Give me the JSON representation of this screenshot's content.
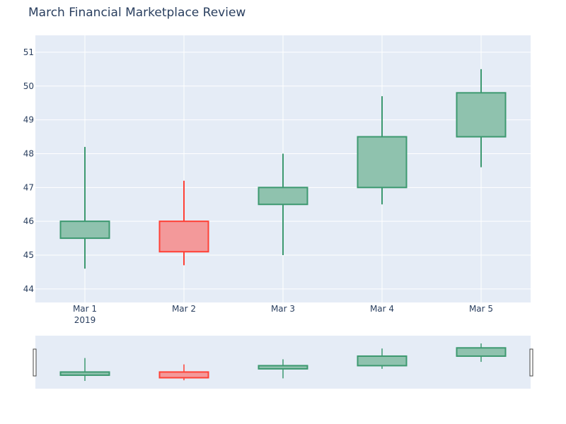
{
  "chart_data": {
    "type": "candlestick",
    "title": "March Financial Marketplace Review",
    "xlabel": "",
    "ylabel": "",
    "year_label": "2019",
    "categories": [
      "Mar 1",
      "Mar 2",
      "Mar 3",
      "Mar 4",
      "Mar 5"
    ],
    "candles": [
      {
        "date": "Mar 1",
        "open": 45.5,
        "high": 48.2,
        "low": 44.6,
        "close": 46.0
      },
      {
        "date": "Mar 2",
        "open": 46.0,
        "high": 47.2,
        "low": 44.7,
        "close": 45.1
      },
      {
        "date": "Mar 3",
        "open": 46.5,
        "high": 48.0,
        "low": 45.0,
        "close": 47.0
      },
      {
        "date": "Mar 4",
        "open": 47.0,
        "high": 49.7,
        "low": 46.5,
        "close": 48.5
      },
      {
        "date": "Mar 5",
        "open": 48.5,
        "high": 50.5,
        "low": 47.6,
        "close": 49.8
      }
    ],
    "yticks": [
      44,
      45,
      46,
      47,
      48,
      49,
      50,
      51
    ],
    "ylim": [
      43.6,
      51.5
    ],
    "grid": true,
    "rangeslider": true,
    "colors": {
      "increasing_line": "#3d9970",
      "increasing_fill": "#8fc2ae",
      "decreasing_line": "#ff4136",
      "decreasing_fill": "#f3999a",
      "plot_bg": "#e5ecf6",
      "grid": "#ffffff",
      "text": "#2a3f5f"
    }
  }
}
